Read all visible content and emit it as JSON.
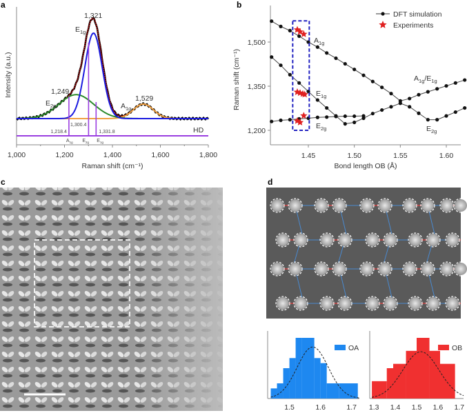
{
  "panels": {
    "a": "a",
    "b": "b",
    "c": "c",
    "d": "d"
  },
  "chart_data": [
    {
      "id": "a",
      "type": "line",
      "title": "",
      "xlabel": "Raman shift (cm⁻¹)",
      "ylabel": "Intensity (a.u.)",
      "xlim": [
        1000,
        1800
      ],
      "xticks": [
        "1,000",
        "1,200",
        "1,400",
        "1,600",
        "1,800"
      ],
      "xtick_values": [
        1000,
        1200,
        1400,
        1600,
        1800
      ],
      "peaks": [
        {
          "name": "E1g",
          "center": 1321,
          "amplitude": 1.0,
          "sigma": 36,
          "color": "#1a1adf"
        },
        {
          "name": "E2g",
          "center": 1249,
          "amplitude": 0.28,
          "sigma": 72,
          "color": "#2a8a2a"
        },
        {
          "name": "A1g",
          "center": 1529,
          "amplitude": 0.17,
          "sigma": 42,
          "color": "#f0a040"
        }
      ],
      "fit_color": "#b01010",
      "data_color": "#000000",
      "peak_labels": [
        {
          "value": "1,321",
          "base": "E",
          "sub": "1g"
        },
        {
          "value": "1,249",
          "base": "E",
          "sub": "2g"
        },
        {
          "value": "1,529",
          "base": "A",
          "sub": "1g"
        }
      ],
      "hd": {
        "label": "HD",
        "color": "#9a3ee0",
        "lines": [
          {
            "x": 1218.4,
            "label": "1,218.4",
            "mode": "A",
            "mode_sub": "1g"
          },
          {
            "x": 1300.4,
            "label": "1,300.4",
            "mode": "E",
            "mode_sub": "2g"
          },
          {
            "x": 1331.8,
            "label": "1,331.8",
            "mode": "E",
            "mode_sub": "1g"
          }
        ]
      }
    },
    {
      "id": "b",
      "type": "scatter",
      "xlabel": "Bond length OB (Å)",
      "ylabel": "Raman shift (cm⁻¹)",
      "xlim": [
        1.41,
        1.625
      ],
      "ylim": [
        1150,
        1610
      ],
      "xticks": [
        "1.45",
        "1.50",
        "1.55",
        "1.60"
      ],
      "xtick_values": [
        1.45,
        1.5,
        1.55,
        1.6
      ],
      "yticks": [
        "1,200",
        "1,350",
        "1,500"
      ],
      "ytick_values": [
        1200,
        1350,
        1500
      ],
      "legend": {
        "dft": "DFT simulation",
        "exp": "Experiments",
        "position": "top-right"
      },
      "x": [
        1.41,
        1.42,
        1.43,
        1.44,
        1.45,
        1.46,
        1.47,
        1.48,
        1.49,
        1.5,
        1.51,
        1.52,
        1.53,
        1.54,
        1.55,
        1.56,
        1.57,
        1.58,
        1.59,
        1.6,
        1.61,
        1.62
      ],
      "series": [
        {
          "name": "A1g branch",
          "values": [
            1571,
            1553,
            1539,
            1520,
            1500,
            1483,
            1463,
            1445,
            1426,
            1407,
            1387,
            1366,
            1346,
            1325,
            1300,
            1308,
            1321,
            1331,
            1341,
            1351,
            1361,
            1371
          ]
        },
        {
          "name": "E1g branch",
          "values": [
            1449,
            1421,
            1389,
            1361,
            1332,
            1303,
            1276,
            1249,
            1222,
            1227,
            1241,
            1257,
            1269,
            1280,
            1292,
            1280,
            1258,
            1236,
            1236,
            1249,
            1262,
            1276
          ]
        },
        {
          "name": "E2g branch",
          "values": [
            1230,
            1234,
            1236,
            1239,
            1241,
            1244,
            1245,
            1247,
            1248,
            1248,
            1249
          ]
        }
      ],
      "experiments": [
        {
          "x": 1.438,
          "y": 1542
        },
        {
          "x": 1.441,
          "y": 1535
        },
        {
          "x": 1.445,
          "y": 1527
        },
        {
          "x": 1.438,
          "y": 1330
        },
        {
          "x": 1.441,
          "y": 1327
        },
        {
          "x": 1.444,
          "y": 1324
        },
        {
          "x": 1.446,
          "y": 1322
        },
        {
          "x": 1.438,
          "y": 1232
        },
        {
          "x": 1.441,
          "y": 1227
        },
        {
          "x": 1.445,
          "y": 1250
        }
      ],
      "highlight_box": {
        "x": [
          1.433,
          1.451
        ],
        "y": [
          1200,
          1572
        ]
      },
      "branch_labels": [
        {
          "base": "A",
          "sub": "1g"
        },
        {
          "base": "E",
          "sub": "1g"
        },
        {
          "base": "E",
          "sub": "2g"
        },
        {
          "base": "A",
          "sub": "1g",
          "base2": "/E",
          "sub2": "1g"
        },
        {
          "base": "E",
          "sub": "2g"
        }
      ]
    },
    {
      "id": "d-OA",
      "type": "bar",
      "legend": "OA",
      "color": "#1e88f0",
      "xlim": [
        1.43,
        1.725
      ],
      "bin_edges": [
        1.44,
        1.46,
        1.48,
        1.5,
        1.52,
        1.54,
        1.58,
        1.6,
        1.62,
        1.66,
        1.72
      ],
      "values": [
        2,
        3,
        6,
        8,
        12,
        12,
        8,
        7,
        3,
        3
      ],
      "xticks": [
        "1.5",
        "1.6",
        "1.7"
      ],
      "xtick_values": [
        1.5,
        1.6,
        1.7
      ],
      "fit": {
        "mean": 1.575,
        "sigma": 0.05,
        "peak": 10.2
      }
    },
    {
      "id": "d-OB",
      "type": "bar",
      "legend": "OB",
      "color": "#f03030",
      "xlim": [
        1.28,
        1.72
      ],
      "bin_edges": [
        1.29,
        1.36,
        1.39,
        1.45,
        1.5,
        1.56,
        1.61,
        1.68
      ],
      "values": [
        4,
        7,
        8,
        11,
        14,
        11,
        8
      ],
      "xticks": [
        "1.3",
        "1.4",
        "1.5",
        "1.6",
        "1.7"
      ],
      "xtick_values": [
        1.3,
        1.4,
        1.5,
        1.6,
        1.7
      ],
      "fit": {
        "mean": 1.52,
        "sigma": 0.085,
        "peak": 10.8
      }
    }
  ]
}
